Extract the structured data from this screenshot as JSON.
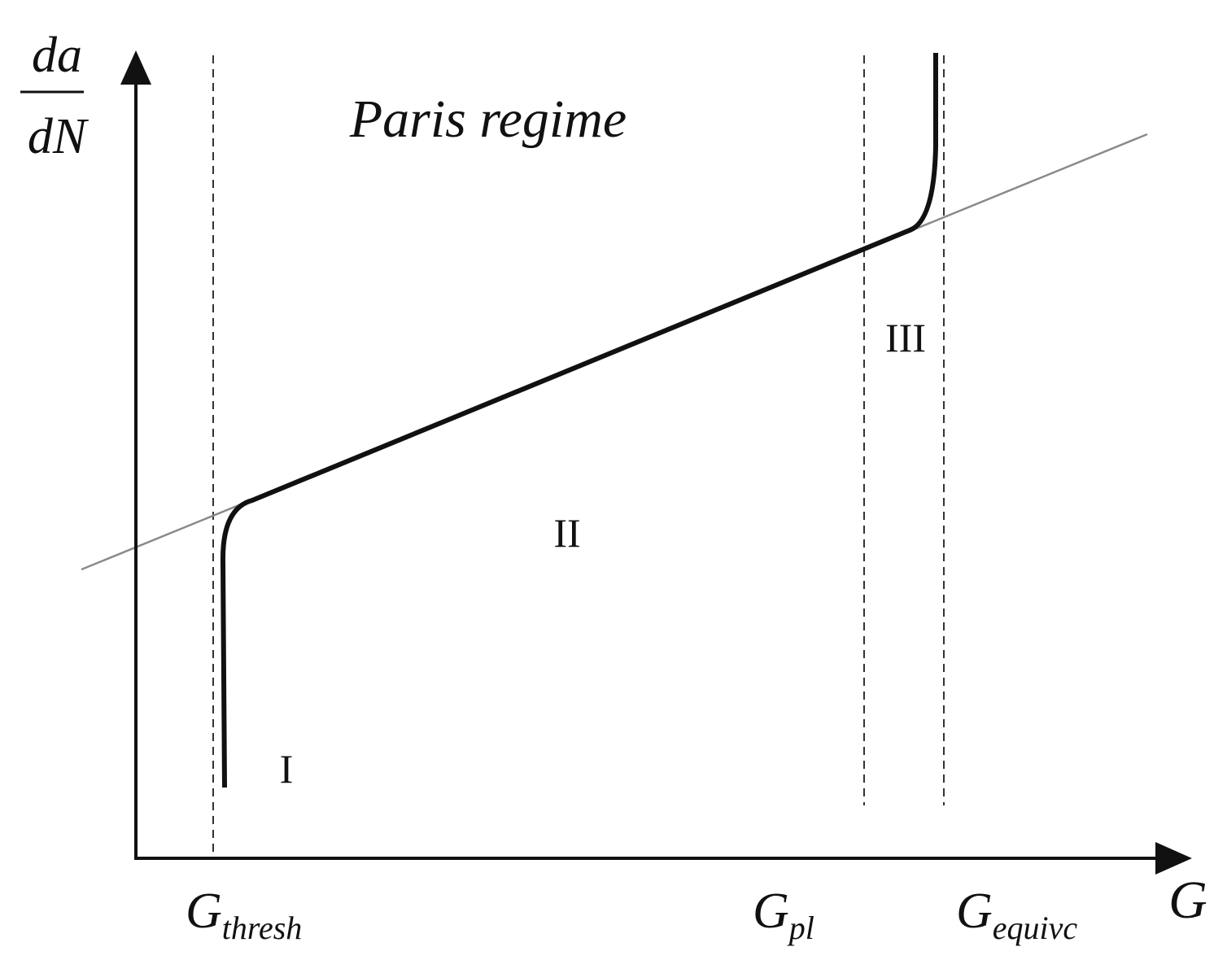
{
  "axes": {
    "y_label_numerator": "da",
    "y_label_denominator": "dN",
    "x_label": "G"
  },
  "title": "Paris regime",
  "regions": {
    "stage_1": "I",
    "stage_2": "II",
    "stage_3": "III"
  },
  "thresholds": {
    "threshold": {
      "base": "G",
      "subscript": "thresh"
    },
    "plastic": {
      "base": "G",
      "subscript": "pl"
    },
    "critical": {
      "base": "G",
      "subscript": "equivc"
    }
  },
  "colors": {
    "axis": "#111111",
    "curve": "#111111",
    "paris_line": "#8a8a8a",
    "dashed": "#333333"
  }
}
